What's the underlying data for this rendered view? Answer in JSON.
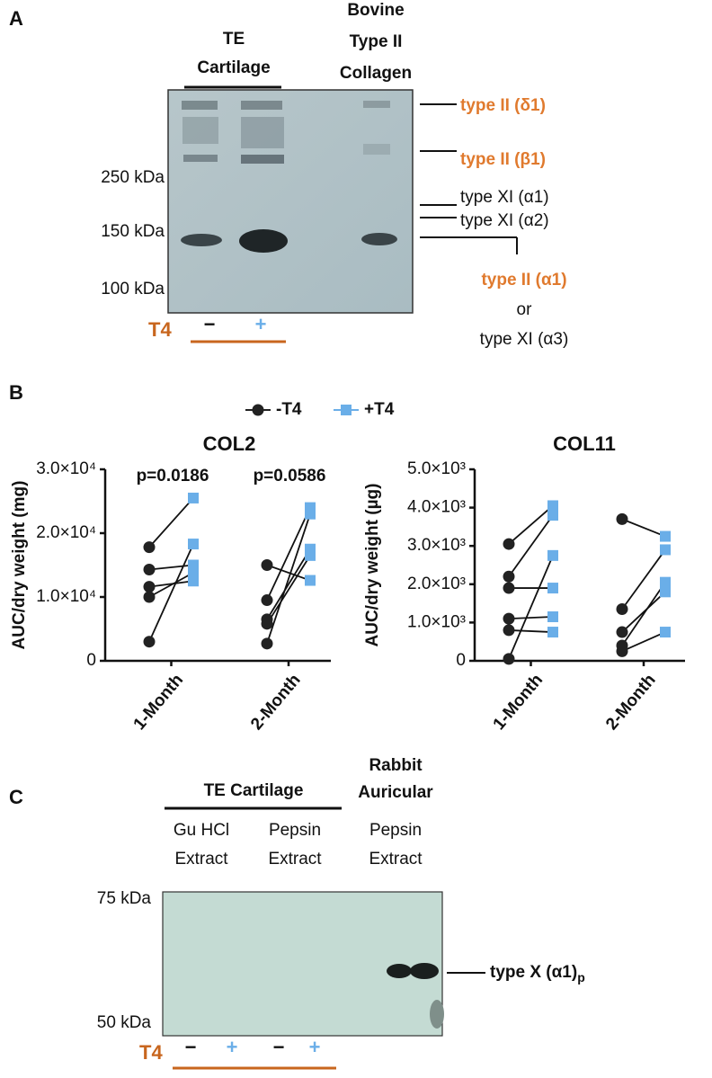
{
  "panel_a": {
    "label": "A",
    "lane_header": [
      "TE",
      "Cartilage"
    ],
    "standard_header": [
      "Bovine",
      "Type II",
      "Collagen"
    ],
    "markers": [
      "250 kDa",
      "150 kDa",
      "100 kDa"
    ],
    "bands": [
      "type II (δ1)",
      "type II (β1)",
      "type XI (α1)",
      "type XI (α2)",
      "type II (α1)",
      "or",
      "type XI (α3)"
    ],
    "treatment": "T4",
    "lanes": [
      "−",
      "+"
    ]
  },
  "panel_b": {
    "label": "B"
  },
  "chart_data": [
    {
      "type": "paired-dot",
      "title": "COL2",
      "y_label": "AUC/dry weight (mg)",
      "categories": [
        "1-Month",
        "2-Month"
      ],
      "ylim": [
        0,
        30000
      ],
      "yticks": [
        0,
        {
          "value": 10000,
          "label": "1.0×10⁴"
        },
        {
          "value": 20000,
          "label": "2.0×10⁴"
        },
        {
          "value": 30000,
          "label": "3.0×10⁴"
        }
      ],
      "annotations": [
        "p=0.0186",
        "p=0.0586"
      ],
      "series": [
        {
          "name": "-T4",
          "color": "#222222",
          "marker": "circle",
          "values": [
            [
              17800,
              14300,
              11600,
              10000,
              3000
            ],
            [
              15000,
              9500,
              6500,
              5800,
              2700
            ]
          ]
        },
        {
          "name": "+T4",
          "color": "#6aaee8",
          "marker": "square",
          "values": [
            [
              25500,
              15000,
              12500,
              13800,
              18300
            ],
            [
              12600,
              24000,
              17500,
              16500,
              23000
            ]
          ]
        }
      ]
    },
    {
      "type": "paired-dot",
      "title": "COL11",
      "y_label": "AUC/dry weight (µg)",
      "categories": [
        "1-Month",
        "2-Month"
      ],
      "ylim": [
        0,
        5000
      ],
      "yticks": [
        0,
        {
          "value": 1000,
          "label": "1.0×10³"
        },
        {
          "value": 2000,
          "label": "2.0×10³"
        },
        {
          "value": 3000,
          "label": "3.0×10³"
        },
        {
          "value": 4000,
          "label": "4.0×10³"
        },
        {
          "value": 5000,
          "label": "5.0×10³"
        }
      ],
      "series": [
        {
          "color": "#222222",
          "marker": "circle",
          "values": [
            [
              3050,
              2200,
              1900,
              1100,
              800,
              50
            ],
            [
              3700,
              1350,
              750,
              400,
              250
            ]
          ]
        },
        {
          "color": "#6aaee8",
          "marker": "square",
          "values": [
            [
              4050,
              3800,
              1900,
              1150,
              750,
              2750
            ],
            [
              3250,
              2900,
              1800,
              2050,
              750
            ]
          ]
        }
      ]
    }
  ],
  "panel_c": {
    "label": "C",
    "group_header": "TE Cartilage",
    "control_header": [
      "Rabbit",
      "Auricular"
    ],
    "extracts": [
      [
        "Gu HCl",
        "Extract"
      ],
      [
        "Pepsin",
        "Extract"
      ],
      [
        "Pepsin",
        "Extract"
      ]
    ],
    "markers": [
      "75 kDa",
      "50 kDa"
    ],
    "band": {
      "text": "type X (α1)",
      "subscript": "p"
    },
    "treatment": "T4",
    "lanes": [
      "−",
      "+",
      "−",
      "+"
    ]
  }
}
